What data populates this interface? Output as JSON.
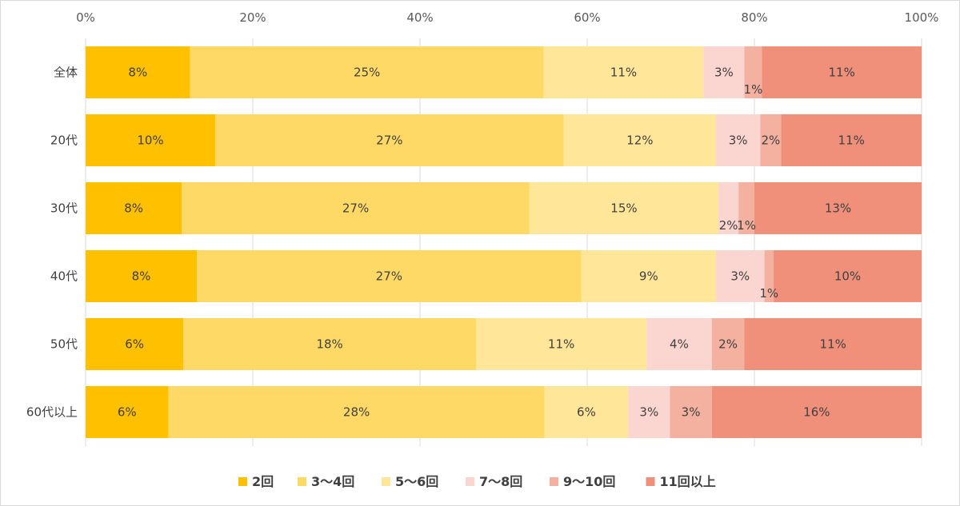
{
  "chart_data": {
    "type": "bar",
    "orientation": "horizontal",
    "stacked": "percent",
    "categories": [
      "全体",
      "20代",
      "30代",
      "40代",
      "50代",
      "60代以上"
    ],
    "series": [
      {
        "name": "2回",
        "color": "#FFC000",
        "values": [
          12.5,
          15.5,
          11.5,
          13.3,
          11.7,
          9.9
        ],
        "labels": [
          "8%",
          "10%",
          "8%",
          "8%",
          "6%",
          "6%"
        ]
      },
      {
        "name": "3～4回",
        "color": "#FFD966",
        "values": [
          42.3,
          41.7,
          41.6,
          46.0,
          35.0,
          45.0
        ],
        "labels": [
          "25%",
          "27%",
          "27%",
          "27%",
          "18%",
          "28%"
        ]
      },
      {
        "name": "5～6回",
        "color": "#FFE699",
        "values": [
          19.1,
          18.2,
          22.6,
          16.1,
          20.4,
          10.0
        ],
        "labels": [
          "11%",
          "12%",
          "15%",
          "9%",
          "11%",
          "6%"
        ]
      },
      {
        "name": "7～8回",
        "color": "#FBD5D0",
        "values": [
          4.9,
          5.3,
          2.4,
          5.8,
          7.8,
          5.0
        ],
        "labels": [
          "3%",
          "3%",
          "2%",
          "3%",
          "4%",
          "3%"
        ]
      },
      {
        "name": "9～10回",
        "color": "#F4B1A0",
        "values": [
          2.1,
          2.5,
          1.9,
          1.1,
          3.9,
          5.0
        ],
        "labels": [
          "1%",
          "2%",
          "1%",
          "1%",
          "2%",
          "3%"
        ]
      },
      {
        "name": "11回以上",
        "color": "#F0907A",
        "values": [
          19.1,
          16.8,
          20.0,
          17.7,
          21.2,
          25.1
        ],
        "labels": [
          "11%",
          "11%",
          "13%",
          "10%",
          "11%",
          "16%"
        ]
      }
    ],
    "xticks": [
      "0%",
      "20%",
      "40%",
      "60%",
      "80%",
      "100%"
    ],
    "xlim": [
      0,
      100
    ],
    "xaxis_position": "top",
    "grid": true,
    "legend": "bottom"
  }
}
